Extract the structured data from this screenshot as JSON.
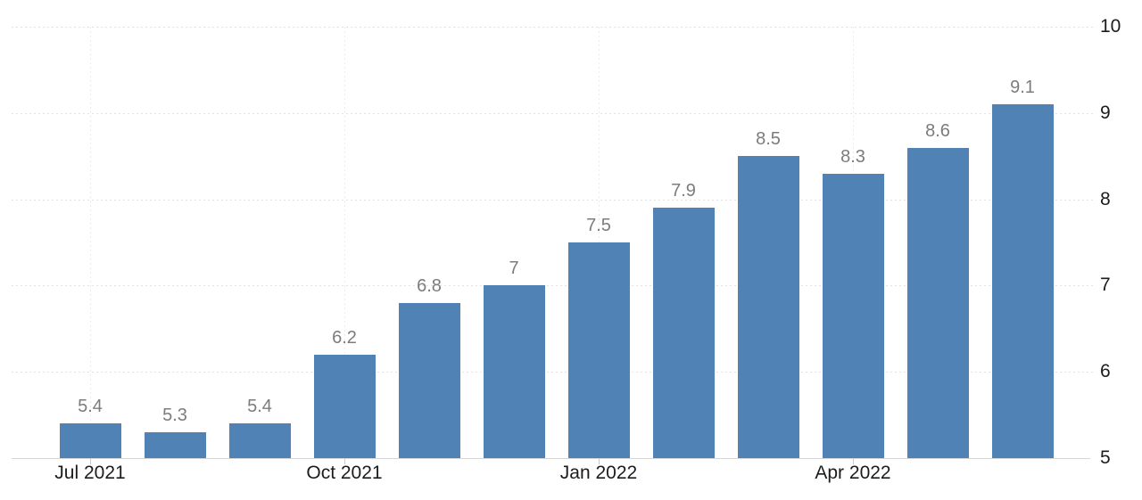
{
  "chart_data": {
    "type": "bar",
    "title": "",
    "xlabel": "",
    "ylabel": "",
    "values": [
      5.4,
      5.3,
      5.4,
      6.2,
      6.8,
      7,
      7.5,
      7.9,
      8.5,
      8.3,
      8.6,
      9.1
    ],
    "value_labels": [
      "5.4",
      "5.3",
      "5.4",
      "6.2",
      "6.8",
      "7",
      "7.5",
      "7.9",
      "8.5",
      "8.3",
      "8.6",
      "9.1"
    ],
    "x_ticks": [
      {
        "label": "Jul 2021",
        "bar_index": 0
      },
      {
        "label": "Oct 2021",
        "bar_index": 3
      },
      {
        "label": "Jan 2022",
        "bar_index": 6
      },
      {
        "label": "Apr 2022",
        "bar_index": 9
      }
    ],
    "y_ticks": [
      "10",
      "9",
      "8",
      "7",
      "6",
      "5"
    ],
    "ylim": [
      5,
      10
    ],
    "y_axis_side": "right",
    "grid": {
      "horizontal": true,
      "vertical_at_x_ticks": true,
      "style": "dotted"
    },
    "legend": "none",
    "colors": {
      "bar": "#5182b5",
      "value_label": "#7c7c7c",
      "axis_label": "#1c1c1c",
      "h_gridline": "#e2e2e2",
      "v_gridline": "#ebebeb",
      "axis_line": "#d6d6d6",
      "tick_mark": "#c9c9c9",
      "background": "#ffffff"
    }
  }
}
